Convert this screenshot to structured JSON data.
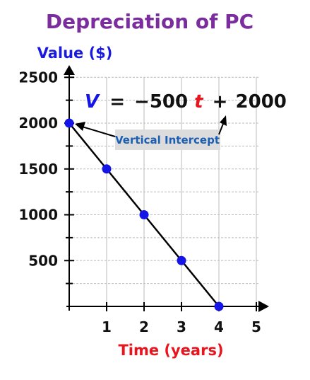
{
  "chart_data": {
    "type": "line",
    "title": "Depreciation of PC",
    "xlabel": "Time (years)",
    "ylabel": "Value ($)",
    "x_ticks": [
      1,
      2,
      3,
      4,
      5
    ],
    "y_ticks": [
      500,
      1000,
      1500,
      2000,
      2500
    ],
    "xlim": [
      0,
      5
    ],
    "ylim": [
      0,
      2500
    ],
    "grid": true,
    "x": [
      0,
      1,
      2,
      3,
      4
    ],
    "y": [
      2000,
      1500,
      1000,
      500,
      0
    ],
    "equation": {
      "lhs": "V",
      "equals": "=",
      "coef": "−500",
      "var": "t",
      "plus": "+",
      "const": "2000"
    },
    "annotation": "Vertical Intercept"
  },
  "colors": {
    "title": "#7b2d9e",
    "ylabel": "#1a1adf",
    "xlabel": "#e8141e",
    "point": "#1515e6",
    "line": "#000000",
    "grid": "#bbbbbb",
    "eq_v": "#1515e6",
    "eq_t": "#e8141e",
    "eq_text": "#111111",
    "callout_bg": "#dcdcdc",
    "callout_text": "#1a5fb4"
  }
}
